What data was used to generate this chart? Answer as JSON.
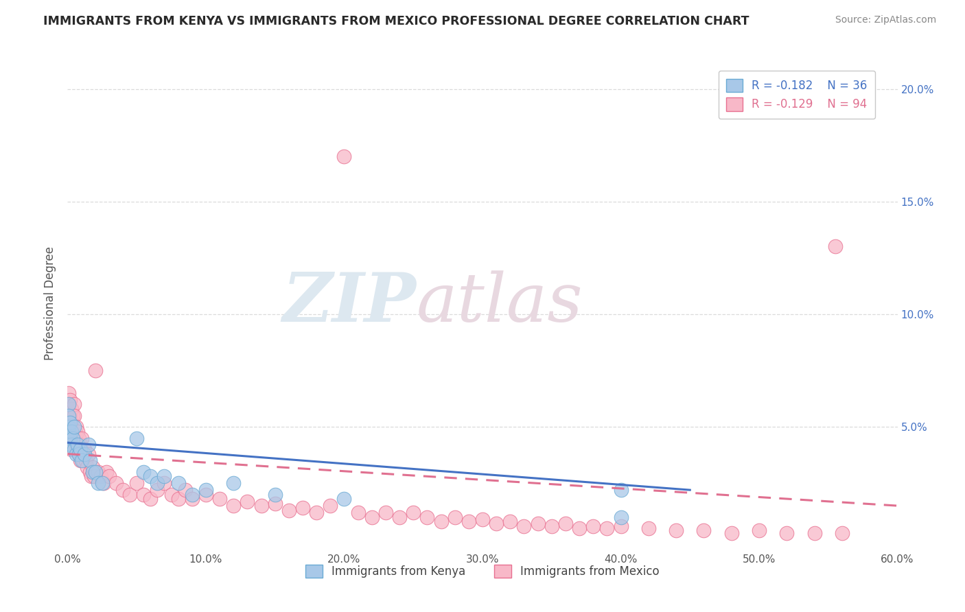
{
  "title": "IMMIGRANTS FROM KENYA VS IMMIGRANTS FROM MEXICO PROFESSIONAL DEGREE CORRELATION CHART",
  "source": "Source: ZipAtlas.com",
  "ylabel": "Professional Degree",
  "xlim": [
    0.0,
    0.6
  ],
  "ylim": [
    -0.005,
    0.215
  ],
  "xtick_labels": [
    "0.0%",
    "10.0%",
    "20.0%",
    "30.0%",
    "40.0%",
    "50.0%",
    "60.0%"
  ],
  "xtick_values": [
    0.0,
    0.1,
    0.2,
    0.3,
    0.4,
    0.5,
    0.6
  ],
  "ytick_labels": [
    "5.0%",
    "10.0%",
    "15.0%",
    "20.0%"
  ],
  "ytick_values": [
    0.05,
    0.1,
    0.15,
    0.2
  ],
  "kenya_color": "#a8c8e8",
  "kenya_edge_color": "#6aaad4",
  "mexico_color": "#f8b8c8",
  "mexico_edge_color": "#e87090",
  "kenya_R": -0.182,
  "kenya_N": 36,
  "mexico_R": -0.129,
  "mexico_N": 94,
  "kenya_scatter_x": [
    0.001,
    0.001,
    0.001,
    0.001,
    0.002,
    0.002,
    0.003,
    0.003,
    0.004,
    0.005,
    0.005,
    0.006,
    0.007,
    0.008,
    0.009,
    0.01,
    0.012,
    0.015,
    0.016,
    0.018,
    0.02,
    0.022,
    0.025,
    0.05,
    0.055,
    0.06,
    0.065,
    0.07,
    0.08,
    0.09,
    0.1,
    0.12,
    0.15,
    0.2,
    0.4,
    0.4
  ],
  "kenya_scatter_y": [
    0.06,
    0.055,
    0.05,
    0.048,
    0.052,
    0.045,
    0.048,
    0.042,
    0.045,
    0.05,
    0.04,
    0.038,
    0.042,
    0.038,
    0.04,
    0.035,
    0.038,
    0.042,
    0.035,
    0.03,
    0.03,
    0.025,
    0.025,
    0.045,
    0.03,
    0.028,
    0.025,
    0.028,
    0.025,
    0.02,
    0.022,
    0.025,
    0.02,
    0.018,
    0.022,
    0.01
  ],
  "mexico_scatter_x": [
    0.001,
    0.001,
    0.001,
    0.001,
    0.001,
    0.002,
    0.002,
    0.002,
    0.003,
    0.003,
    0.003,
    0.003,
    0.004,
    0.004,
    0.005,
    0.005,
    0.005,
    0.006,
    0.006,
    0.007,
    0.007,
    0.008,
    0.008,
    0.009,
    0.009,
    0.01,
    0.01,
    0.011,
    0.012,
    0.013,
    0.014,
    0.015,
    0.016,
    0.017,
    0.018,
    0.019,
    0.02,
    0.022,
    0.024,
    0.026,
    0.028,
    0.03,
    0.035,
    0.04,
    0.045,
    0.05,
    0.055,
    0.06,
    0.065,
    0.07,
    0.075,
    0.08,
    0.085,
    0.09,
    0.1,
    0.11,
    0.12,
    0.13,
    0.14,
    0.15,
    0.16,
    0.17,
    0.18,
    0.19,
    0.2,
    0.21,
    0.22,
    0.23,
    0.24,
    0.25,
    0.26,
    0.27,
    0.28,
    0.29,
    0.3,
    0.31,
    0.32,
    0.33,
    0.34,
    0.35,
    0.36,
    0.37,
    0.38,
    0.39,
    0.4,
    0.42,
    0.44,
    0.46,
    0.48,
    0.5,
    0.52,
    0.54,
    0.555,
    0.56
  ],
  "mexico_scatter_y": [
    0.065,
    0.06,
    0.055,
    0.05,
    0.045,
    0.062,
    0.055,
    0.048,
    0.058,
    0.052,
    0.045,
    0.04,
    0.055,
    0.048,
    0.06,
    0.055,
    0.045,
    0.05,
    0.042,
    0.048,
    0.04,
    0.045,
    0.038,
    0.042,
    0.035,
    0.045,
    0.038,
    0.035,
    0.04,
    0.035,
    0.032,
    0.038,
    0.03,
    0.028,
    0.032,
    0.028,
    0.075,
    0.03,
    0.028,
    0.025,
    0.03,
    0.028,
    0.025,
    0.022,
    0.02,
    0.025,
    0.02,
    0.018,
    0.022,
    0.025,
    0.02,
    0.018,
    0.022,
    0.018,
    0.02,
    0.018,
    0.015,
    0.017,
    0.015,
    0.016,
    0.013,
    0.014,
    0.012,
    0.015,
    0.17,
    0.012,
    0.01,
    0.012,
    0.01,
    0.012,
    0.01,
    0.008,
    0.01,
    0.008,
    0.009,
    0.007,
    0.008,
    0.006,
    0.007,
    0.006,
    0.007,
    0.005,
    0.006,
    0.005,
    0.006,
    0.005,
    0.004,
    0.004,
    0.003,
    0.004,
    0.003,
    0.003,
    0.13,
    0.003
  ],
  "kenya_trend_x": [
    0.0,
    0.45
  ],
  "kenya_trend_y": [
    0.043,
    0.022
  ],
  "mexico_trend_x": [
    0.0,
    0.6
  ],
  "mexico_trend_y": [
    0.038,
    0.015
  ],
  "watermark_zip": "ZIP",
  "watermark_atlas": "atlas",
  "watermark_color": "#dde8f0",
  "background_color": "#ffffff",
  "grid_color": "#d8d8d8",
  "title_color": "#2a2a2a",
  "kenya_line_color": "#4472c4",
  "mexico_line_color": "#e07090",
  "legend_border_color": "#c8c8c8",
  "legend_kenya_text_color": "#4472c4",
  "legend_mexico_text_color": "#e07090"
}
